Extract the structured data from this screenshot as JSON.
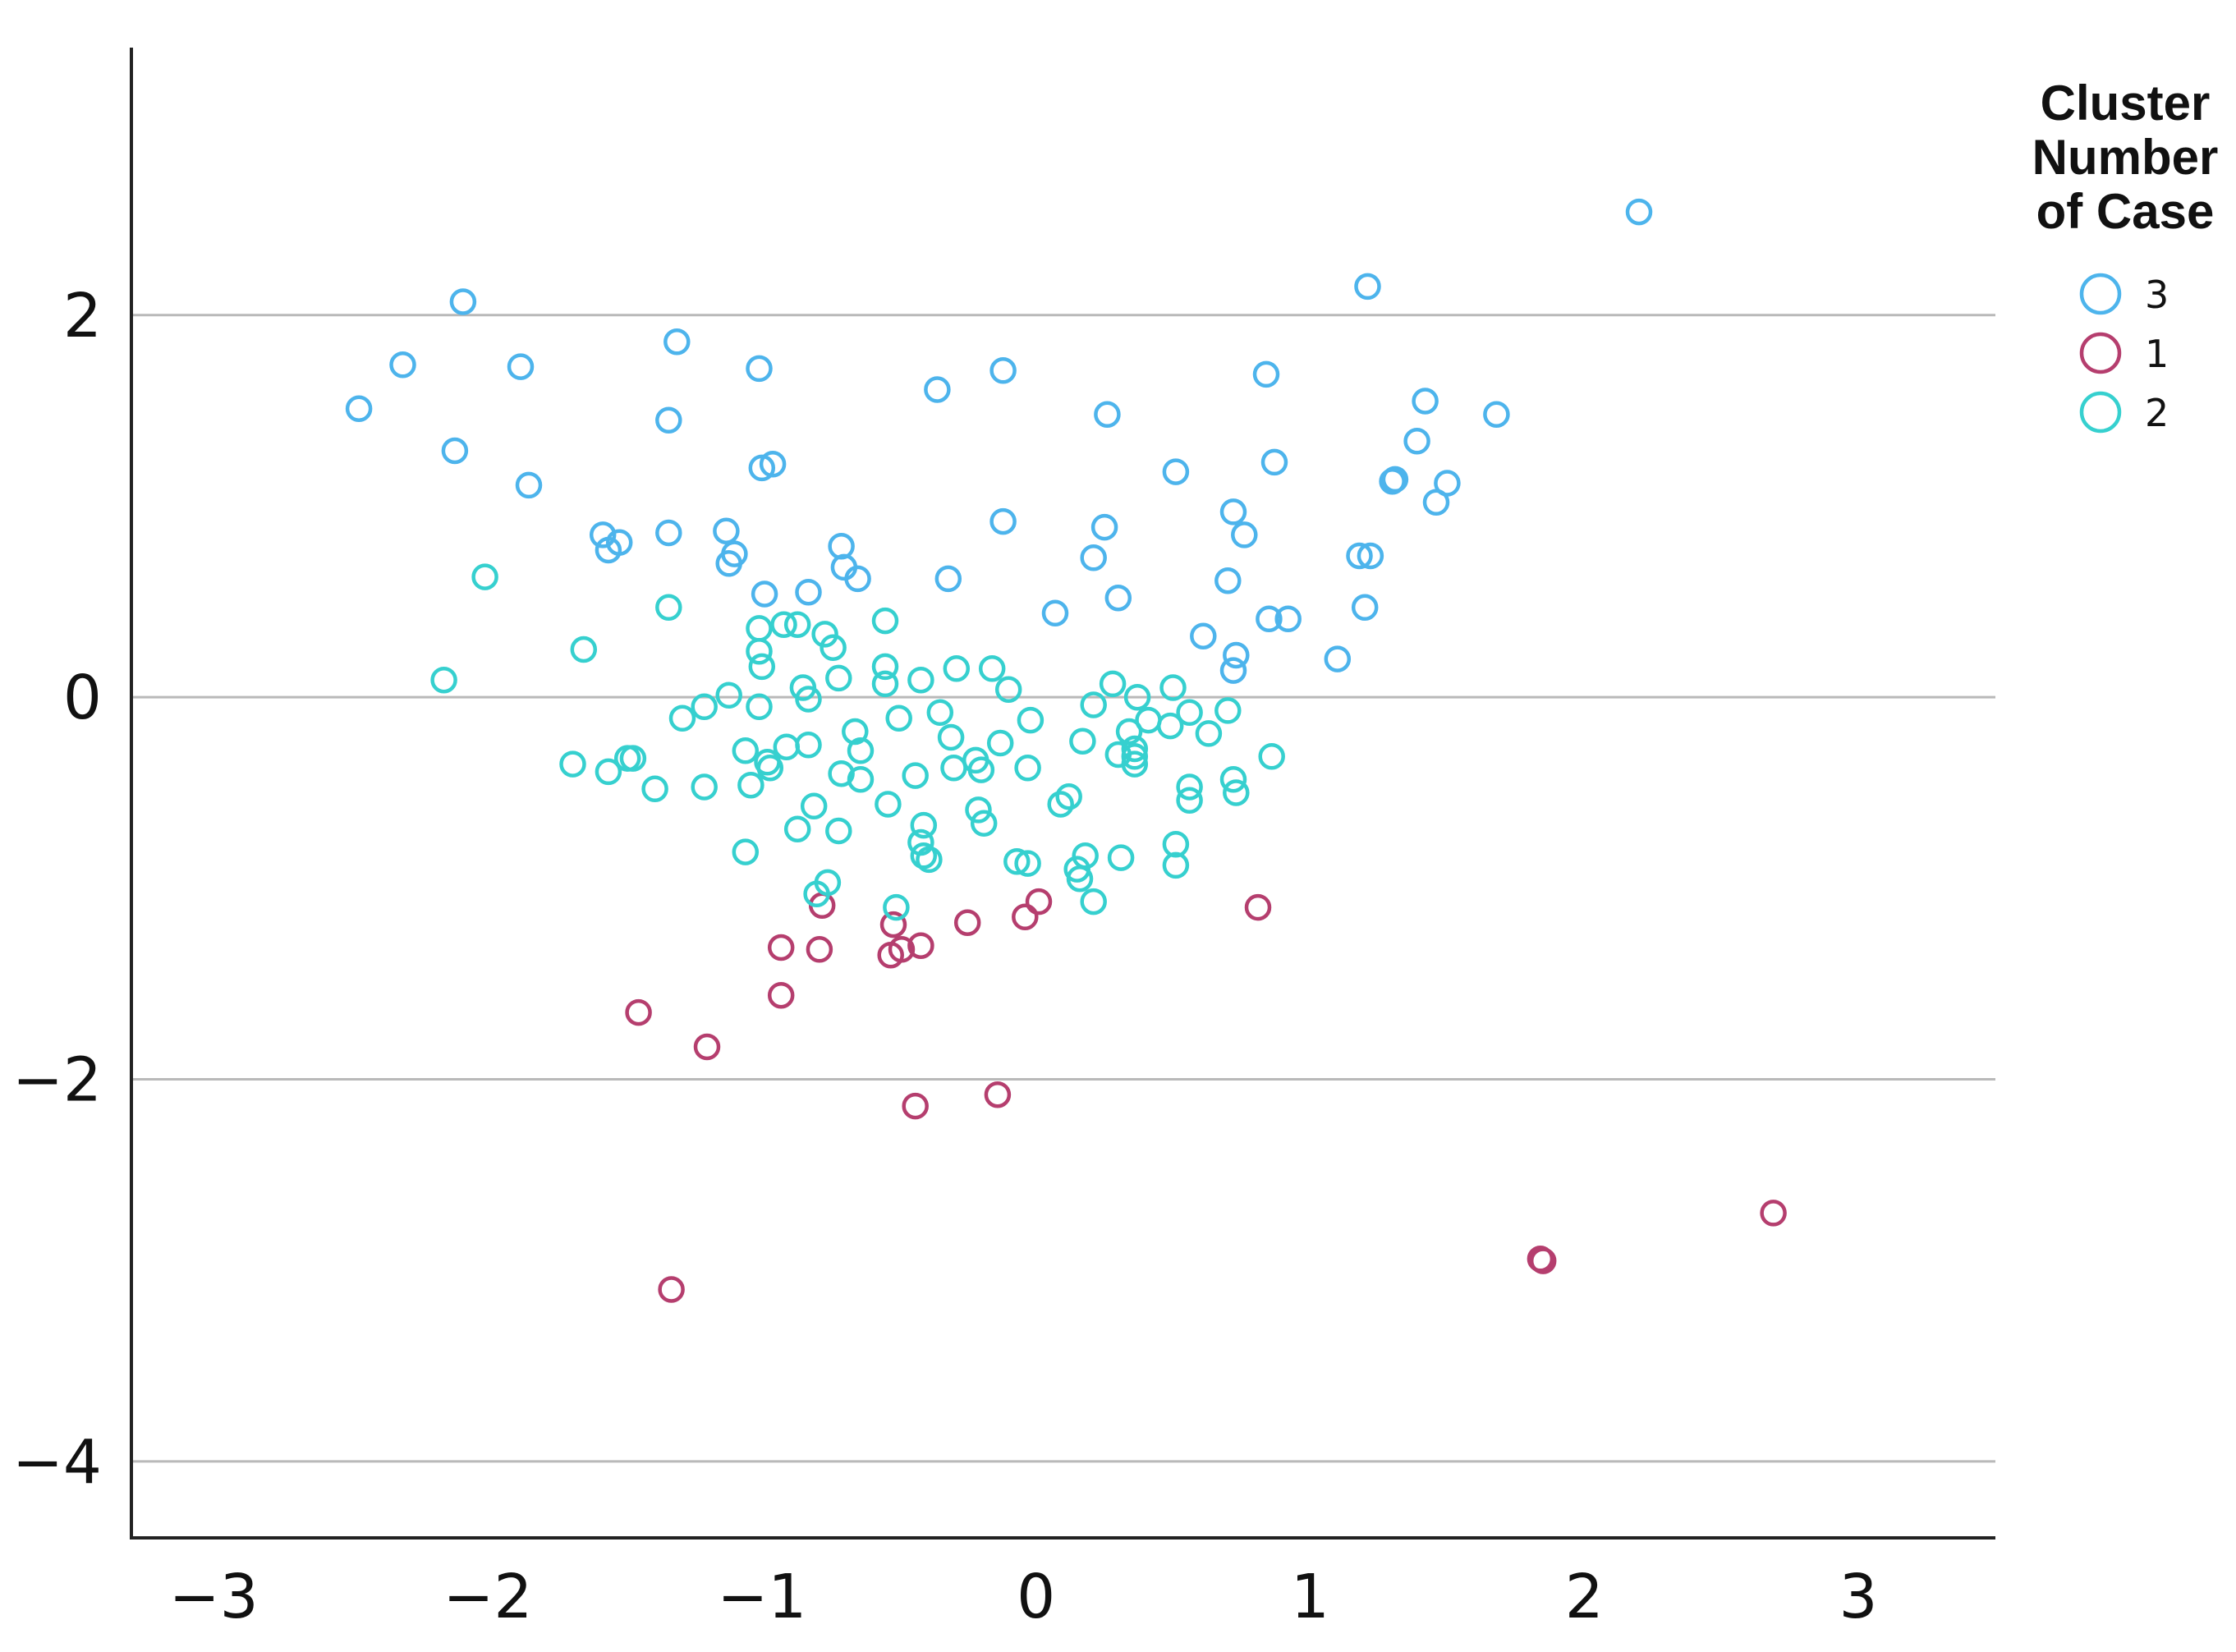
{
  "chart_data": {
    "type": "scatter",
    "title": "",
    "xlabel": "",
    "ylabel": "",
    "xlim": [
      -3.3,
      3.5
    ],
    "ylim": [
      -4.4,
      3.4
    ],
    "xticks": [
      "−3",
      "−2",
      "−1",
      "0",
      "1",
      "2",
      "3"
    ],
    "yticks": [
      "2",
      "0",
      "−2",
      "−4"
    ],
    "xtick_values": [
      -3,
      -2,
      -1,
      0,
      1,
      2,
      3
    ],
    "ytick_values": [
      2,
      0,
      -2,
      -4
    ],
    "grid": "horizontal",
    "legend": {
      "title": "Cluster Number of Case",
      "position": "top-right",
      "entries": [
        "3",
        "1",
        "2"
      ]
    },
    "series": [
      {
        "name": "3",
        "color": "#4db4ec",
        "points": [
          [
            -2.47,
            1.51
          ],
          [
            -2.31,
            1.74
          ],
          [
            -2.09,
            2.07
          ],
          [
            -2.12,
            1.29
          ],
          [
            -1.88,
            1.73
          ],
          [
            -1.85,
            1.11
          ],
          [
            -1.31,
            1.86
          ],
          [
            -1.34,
            1.45
          ],
          [
            -1.01,
            1.72
          ],
          [
            -0.96,
            1.22
          ],
          [
            -1.0,
            1.2
          ],
          [
            -0.36,
            1.61
          ],
          [
            -0.12,
            1.71
          ],
          [
            0.26,
            1.48
          ],
          [
            0.51,
            1.18
          ],
          [
            0.84,
            1.69
          ],
          [
            0.87,
            1.23
          ],
          [
            1.21,
            2.15
          ],
          [
            1.31,
            1.14
          ],
          [
            1.3,
            1.13
          ],
          [
            1.42,
            1.55
          ],
          [
            1.39,
            1.34
          ],
          [
            1.5,
            1.12
          ],
          [
            1.46,
            1.02
          ],
          [
            1.68,
            1.48
          ],
          [
            2.2,
            2.54
          ],
          [
            -1.58,
            0.85
          ],
          [
            -1.56,
            0.77
          ],
          [
            -1.52,
            0.81
          ],
          [
            -1.34,
            0.86
          ],
          [
            -1.13,
            0.87
          ],
          [
            -1.1,
            0.75
          ],
          [
            -1.12,
            0.7
          ],
          [
            -0.99,
            0.54
          ],
          [
            -0.83,
            0.55
          ],
          [
            -0.71,
            0.79
          ],
          [
            -0.7,
            0.68
          ],
          [
            -0.65,
            0.62
          ],
          [
            -0.32,
            0.62
          ],
          [
            -0.12,
            0.92
          ],
          [
            0.07,
            0.44
          ],
          [
            0.21,
            0.73
          ],
          [
            0.25,
            0.89
          ],
          [
            0.3,
            0.52
          ],
          [
            0.61,
            0.32
          ],
          [
            0.7,
            0.61
          ],
          [
            0.72,
            0.97
          ],
          [
            0.76,
            0.85
          ],
          [
            0.72,
            0.14
          ],
          [
            0.73,
            0.22
          ],
          [
            0.85,
            0.41
          ],
          [
            0.92,
            0.41
          ],
          [
            1.1,
            0.2
          ],
          [
            1.18,
            0.74
          ],
          [
            1.22,
            0.74
          ],
          [
            1.2,
            0.47
          ]
        ]
      },
      {
        "name": "1",
        "color": "#b53e6e",
        "points": [
          [
            -0.78,
            -1.09
          ],
          [
            -0.52,
            -1.19
          ],
          [
            -0.42,
            -1.3
          ],
          [
            -0.49,
            -1.32
          ],
          [
            -0.53,
            -1.35
          ],
          [
            -0.79,
            -1.32
          ],
          [
            -0.93,
            -1.31
          ],
          [
            -0.93,
            -1.56
          ],
          [
            -0.25,
            -1.18
          ],
          [
            -0.04,
            -1.15
          ],
          [
            0.01,
            -1.07
          ],
          [
            0.81,
            -1.1
          ],
          [
            -1.45,
            -1.65
          ],
          [
            -1.2,
            -1.83
          ],
          [
            -0.44,
            -2.14
          ],
          [
            -0.14,
            -2.08
          ],
          [
            -1.33,
            -3.1
          ],
          [
            1.84,
            -2.94
          ],
          [
            1.85,
            -2.95
          ],
          [
            2.69,
            -2.7
          ]
        ]
      },
      {
        "name": "2",
        "color": "#36d0cf",
        "points": [
          [
            -2.01,
            0.63
          ],
          [
            -2.16,
            0.09
          ],
          [
            -1.65,
            0.25
          ],
          [
            -1.34,
            0.47
          ],
          [
            -1.69,
            -0.35
          ],
          [
            -1.56,
            -0.39
          ],
          [
            -1.49,
            -0.32
          ],
          [
            -1.47,
            -0.32
          ],
          [
            -1.39,
            -0.48
          ],
          [
            -1.29,
            -0.11
          ],
          [
            -1.21,
            -0.05
          ],
          [
            -1.21,
            -0.47
          ],
          [
            -1.12,
            0.01
          ],
          [
            -1.06,
            -0.28
          ],
          [
            -1.04,
            -0.46
          ],
          [
            -1.06,
            -0.81
          ],
          [
            -1.01,
            0.36
          ],
          [
            -1.01,
            0.24
          ],
          [
            -1.0,
            0.16
          ],
          [
            -1.01,
            -0.05
          ],
          [
            -0.98,
            -0.34
          ],
          [
            -0.97,
            -0.37
          ],
          [
            -0.92,
            0.38
          ],
          [
            -0.91,
            -0.26
          ],
          [
            -0.87,
            0.38
          ],
          [
            -0.85,
            0.05
          ],
          [
            -0.83,
            -0.01
          ],
          [
            -0.83,
            -0.25
          ],
          [
            -0.81,
            -0.57
          ],
          [
            -0.87,
            -0.69
          ],
          [
            -0.77,
            0.33
          ],
          [
            -0.76,
            -0.97
          ],
          [
            -0.8,
            -1.03
          ],
          [
            -0.74,
            0.26
          ],
          [
            -0.72,
            0.1
          ],
          [
            -0.71,
            -0.4
          ],
          [
            -0.72,
            -0.7
          ],
          [
            -0.66,
            -0.18
          ],
          [
            -0.64,
            -0.28
          ],
          [
            -0.64,
            -0.43
          ],
          [
            -0.55,
            0.4
          ],
          [
            -0.55,
            0.16
          ],
          [
            -0.55,
            0.07
          ],
          [
            -0.54,
            -0.56
          ],
          [
            -0.51,
            -1.1
          ],
          [
            -0.5,
            -0.11
          ],
          [
            -0.44,
            -0.41
          ],
          [
            -0.42,
            0.09
          ],
          [
            -0.41,
            -0.67
          ],
          [
            -0.42,
            -0.76
          ],
          [
            -0.41,
            -0.83
          ],
          [
            -0.39,
            -0.85
          ],
          [
            -0.35,
            -0.08
          ],
          [
            -0.31,
            -0.21
          ],
          [
            -0.3,
            -0.37
          ],
          [
            -0.29,
            0.15
          ],
          [
            -0.21,
            -0.59
          ],
          [
            -0.22,
            -0.33
          ],
          [
            -0.2,
            -0.38
          ],
          [
            -0.19,
            -0.66
          ],
          [
            -0.16,
            0.15
          ],
          [
            -0.13,
            -0.24
          ],
          [
            -0.1,
            0.04
          ],
          [
            -0.07,
            -0.86
          ],
          [
            -0.03,
            -0.87
          ],
          [
            -0.03,
            -0.37
          ],
          [
            -0.02,
            -0.12
          ],
          [
            0.09,
            -0.56
          ],
          [
            0.12,
            -0.52
          ],
          [
            0.15,
            -0.9
          ],
          [
            0.16,
            -0.95
          ],
          [
            0.18,
            -0.83
          ],
          [
            0.17,
            -0.23
          ],
          [
            0.21,
            -1.07
          ],
          [
            0.21,
            -0.04
          ],
          [
            0.28,
            0.07
          ],
          [
            0.3,
            -0.3
          ],
          [
            0.31,
            -0.84
          ],
          [
            0.34,
            -0.18
          ],
          [
            0.36,
            -0.27
          ],
          [
            0.36,
            -0.31
          ],
          [
            0.36,
            -0.35
          ],
          [
            0.37,
            -0.0
          ],
          [
            0.41,
            -0.12
          ],
          [
            0.49,
            -0.15
          ],
          [
            0.5,
            0.05
          ],
          [
            0.51,
            -0.77
          ],
          [
            0.51,
            -0.88
          ],
          [
            0.56,
            -0.08
          ],
          [
            0.56,
            -0.47
          ],
          [
            0.56,
            -0.54
          ],
          [
            0.63,
            -0.19
          ],
          [
            0.7,
            -0.07
          ],
          [
            0.72,
            -0.43
          ],
          [
            0.73,
            -0.5
          ],
          [
            0.86,
            -0.31
          ]
        ]
      }
    ]
  }
}
